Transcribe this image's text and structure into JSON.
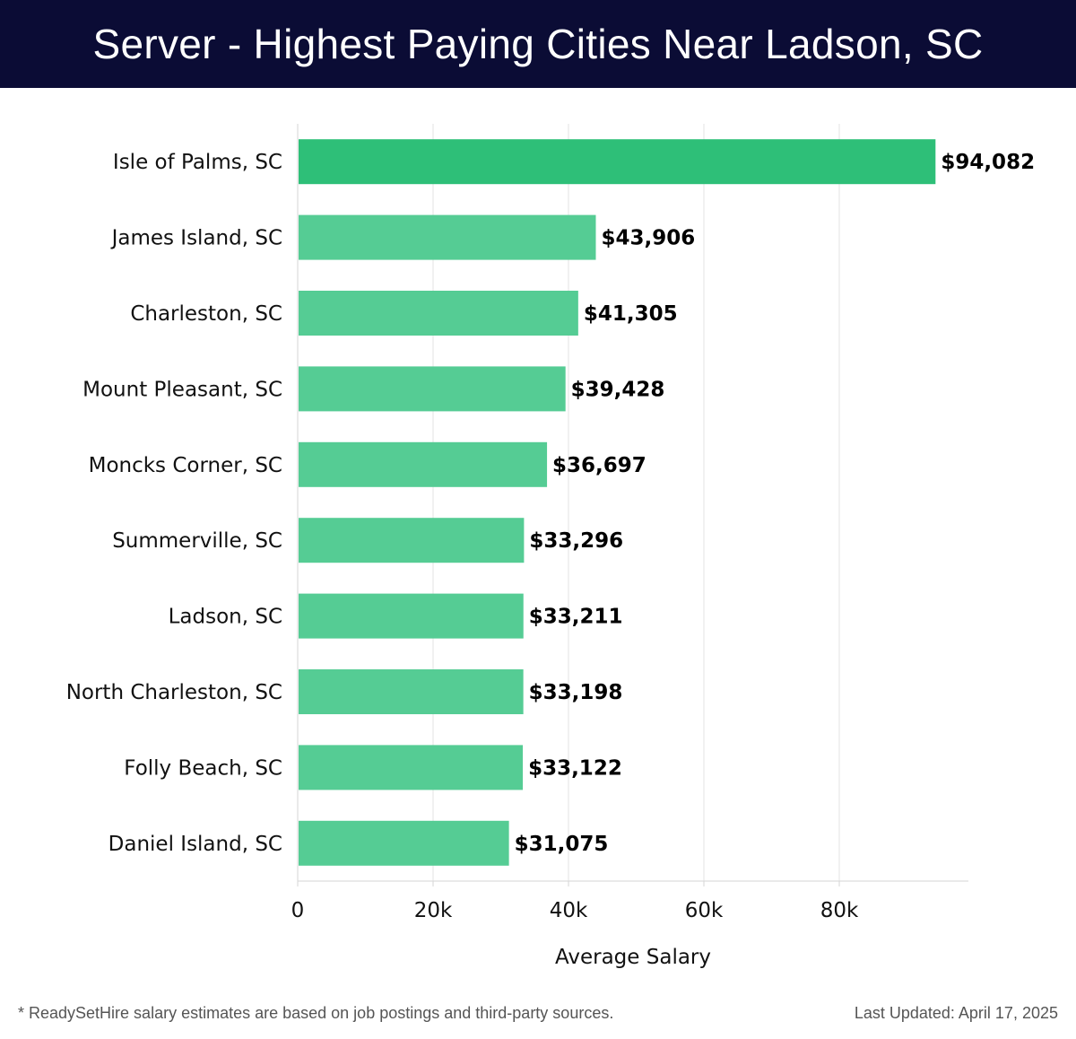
{
  "header": {
    "title": "Server - Highest Paying Cities Near Ladson, SC"
  },
  "footer": {
    "note": "* ReadySetHire salary estimates are based on job postings and third-party sources.",
    "updated": "Last Updated: April 17, 2025"
  },
  "colors": {
    "header_bg": "#0b0c35",
    "bar_top": "#2ebf78",
    "bar": "#55cc94"
  },
  "chart_data": {
    "type": "bar",
    "orientation": "horizontal",
    "categories": [
      "Isle of Palms, SC",
      "James Island, SC",
      "Charleston, SC",
      "Mount Pleasant, SC",
      "Moncks Corner, SC",
      "Summerville, SC",
      "Ladson, SC",
      "North Charleston, SC",
      "Folly Beach, SC",
      "Daniel Island, SC"
    ],
    "values": [
      94082,
      43906,
      41305,
      39428,
      36697,
      33296,
      33211,
      33198,
      33122,
      31075
    ],
    "value_labels": [
      "$94,082",
      "$43,906",
      "$41,305",
      "$39,428",
      "$36,697",
      "$33,296",
      "$33,211",
      "$33,198",
      "$33,122",
      "$31,075"
    ],
    "xticks": [
      0,
      20000,
      40000,
      60000,
      80000
    ],
    "xtick_labels": [
      "0",
      "20k",
      "40k",
      "60k",
      "80k"
    ],
    "xlabel": "Average Salary",
    "ylabel": "",
    "xlim": [
      0,
      99000
    ],
    "grid": true
  }
}
